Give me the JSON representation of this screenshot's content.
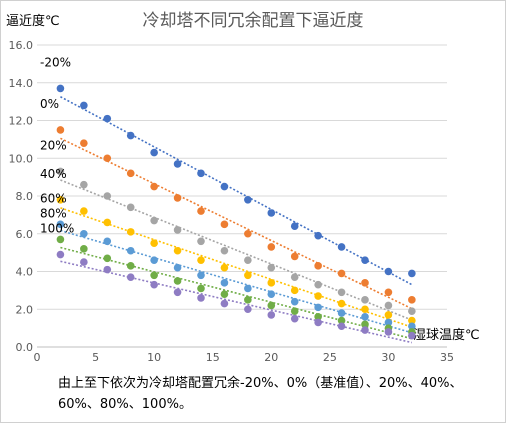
{
  "chart_data": {
    "type": "scatter",
    "title": "冷却塔不同冗余配置下逼近度",
    "ylabel": "逼近度℃",
    "xlabel": "湿球温度℃",
    "xlim": [
      0,
      35
    ],
    "ylim": [
      0,
      16
    ],
    "xticks": [
      "0",
      "5",
      "10",
      "15",
      "20",
      "25",
      "30",
      "35"
    ],
    "yticks": [
      "0.0",
      "2.0",
      "4.0",
      "6.0",
      "8.0",
      "10.0",
      "12.0",
      "14.0",
      "16.0"
    ],
    "grid": true,
    "trendlines": true,
    "note": "由上至下依次为冷却塔配置冗余-20%、0%（基准值）、20%、40%、60%、80%、100%。",
    "x": [
      2,
      4,
      6,
      8,
      10,
      12,
      14,
      16,
      18,
      20,
      22,
      24,
      26,
      28,
      30,
      32
    ],
    "series": [
      {
        "name": "-20%",
        "color": "#4472c4",
        "values": [
          13.7,
          12.8,
          12.1,
          11.2,
          10.3,
          9.7,
          9.2,
          8.5,
          7.8,
          7.1,
          6.4,
          5.9,
          5.3,
          4.6,
          4.0,
          3.9
        ]
      },
      {
        "name": "0%",
        "color": "#ed7d31",
        "values": [
          11.5,
          10.8,
          10.0,
          9.2,
          8.5,
          7.9,
          7.2,
          6.5,
          6.0,
          5.3,
          4.8,
          4.3,
          3.9,
          3.4,
          2.9,
          2.5
        ]
      },
      {
        "name": "20%",
        "color": "#a5a5a5",
        "values": [
          9.3,
          8.6,
          8.0,
          7.4,
          6.7,
          6.2,
          5.6,
          5.1,
          4.6,
          4.2,
          3.7,
          3.3,
          2.9,
          2.5,
          2.2,
          1.9
        ]
      },
      {
        "name": "40%",
        "color": "#ffc000",
        "values": [
          7.8,
          7.2,
          6.6,
          6.1,
          5.5,
          5.1,
          4.6,
          4.2,
          3.8,
          3.4,
          3.0,
          2.7,
          2.3,
          2.0,
          1.7,
          1.4
        ]
      },
      {
        "name": "60%",
        "color": "#5b9bd5",
        "values": [
          6.5,
          6.0,
          5.6,
          5.1,
          4.6,
          4.2,
          3.8,
          3.4,
          3.1,
          2.8,
          2.4,
          2.1,
          1.8,
          1.6,
          1.3,
          1.1
        ]
      },
      {
        "name": "80%",
        "color": "#70ad47",
        "values": [
          5.7,
          5.2,
          4.7,
          4.3,
          3.8,
          3.5,
          3.1,
          2.8,
          2.5,
          2.2,
          1.9,
          1.6,
          1.4,
          1.2,
          1.0,
          0.8
        ]
      },
      {
        "name": "100%",
        "color": "#8e7cc3",
        "values": [
          4.9,
          4.5,
          4.1,
          3.7,
          3.3,
          2.9,
          2.6,
          2.3,
          2.0,
          1.7,
          1.5,
          1.3,
          1.1,
          0.9,
          0.8,
          0.6
        ]
      }
    ]
  }
}
